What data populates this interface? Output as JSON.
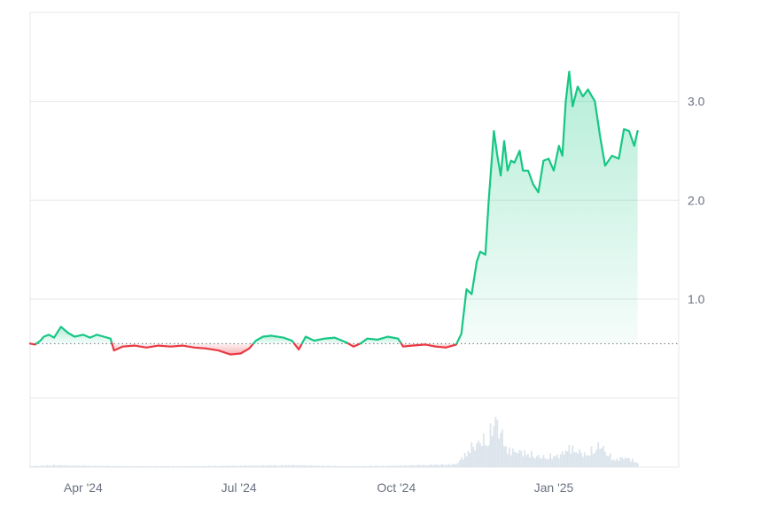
{
  "chart_data": {
    "type": "area",
    "baseline": 0.55,
    "ylim": [
      -0.7,
      3.9
    ],
    "x_range": [
      "2024-03-01",
      "2025-03-15"
    ],
    "y_ticks": [
      {
        "value": 1.0,
        "label": "1.0"
      },
      {
        "value": 2.0,
        "label": "2.0"
      },
      {
        "value": 3.0,
        "label": "3.0"
      }
    ],
    "x_ticks": [
      {
        "date": "2024-04-01",
        "label": "Apr '24"
      },
      {
        "date": "2024-07-01",
        "label": "Jul '24"
      },
      {
        "date": "2024-10-01",
        "label": "Oct '24"
      },
      {
        "date": "2025-01-01",
        "label": "Jan '25"
      }
    ],
    "series": [
      {
        "values": [
          [
            "2024-03-01",
            0.55
          ],
          [
            "2024-03-04",
            0.54
          ],
          [
            "2024-03-07",
            0.58
          ],
          [
            "2024-03-09",
            0.62
          ],
          [
            "2024-03-12",
            0.64
          ],
          [
            "2024-03-15",
            0.61
          ],
          [
            "2024-03-19",
            0.72
          ],
          [
            "2024-03-23",
            0.66
          ],
          [
            "2024-03-27",
            0.62
          ],
          [
            "2024-04-01",
            0.64
          ],
          [
            "2024-04-05",
            0.61
          ],
          [
            "2024-04-09",
            0.64
          ],
          [
            "2024-04-13",
            0.62
          ],
          [
            "2024-04-17",
            0.6
          ],
          [
            "2024-04-19",
            0.48
          ],
          [
            "2024-04-24",
            0.52
          ],
          [
            "2024-05-01",
            0.53
          ],
          [
            "2024-05-08",
            0.51
          ],
          [
            "2024-05-15",
            0.53
          ],
          [
            "2024-05-22",
            0.52
          ],
          [
            "2024-05-29",
            0.53
          ],
          [
            "2024-06-05",
            0.51
          ],
          [
            "2024-06-12",
            0.5
          ],
          [
            "2024-06-19",
            0.48
          ],
          [
            "2024-06-26",
            0.44
          ],
          [
            "2024-07-02",
            0.45
          ],
          [
            "2024-07-07",
            0.5
          ],
          [
            "2024-07-11",
            0.58
          ],
          [
            "2024-07-15",
            0.62
          ],
          [
            "2024-07-20",
            0.63
          ],
          [
            "2024-07-27",
            0.61
          ],
          [
            "2024-08-01",
            0.58
          ],
          [
            "2024-08-05",
            0.49
          ],
          [
            "2024-08-09",
            0.62
          ],
          [
            "2024-08-14",
            0.58
          ],
          [
            "2024-08-20",
            0.6
          ],
          [
            "2024-08-26",
            0.61
          ],
          [
            "2024-09-02",
            0.56
          ],
          [
            "2024-09-06",
            0.52
          ],
          [
            "2024-09-10",
            0.55
          ],
          [
            "2024-09-14",
            0.6
          ],
          [
            "2024-09-20",
            0.59
          ],
          [
            "2024-09-26",
            0.62
          ],
          [
            "2024-10-02",
            0.6
          ],
          [
            "2024-10-05",
            0.52
          ],
          [
            "2024-10-10",
            0.53
          ],
          [
            "2024-10-18",
            0.54
          ],
          [
            "2024-10-24",
            0.52
          ],
          [
            "2024-10-30",
            0.51
          ],
          [
            "2024-11-05",
            0.54
          ],
          [
            "2024-11-08",
            0.65
          ],
          [
            "2024-11-11",
            1.1
          ],
          [
            "2024-11-14",
            1.05
          ],
          [
            "2024-11-17",
            1.38
          ],
          [
            "2024-11-19",
            1.48
          ],
          [
            "2024-11-22",
            1.45
          ],
          [
            "2024-11-24",
            2.0
          ],
          [
            "2024-11-27",
            2.7
          ],
          [
            "2024-11-29",
            2.45
          ],
          [
            "2024-12-01",
            2.25
          ],
          [
            "2024-12-03",
            2.6
          ],
          [
            "2024-12-05",
            2.3
          ],
          [
            "2024-12-07",
            2.4
          ],
          [
            "2024-12-09",
            2.38
          ],
          [
            "2024-12-12",
            2.5
          ],
          [
            "2024-12-14",
            2.3
          ],
          [
            "2024-12-17",
            2.3
          ],
          [
            "2024-12-20",
            2.16
          ],
          [
            "2024-12-23",
            2.08
          ],
          [
            "2024-12-26",
            2.4
          ],
          [
            "2024-12-29",
            2.42
          ],
          [
            "2025-01-01",
            2.3
          ],
          [
            "2025-01-04",
            2.55
          ],
          [
            "2025-01-06",
            2.45
          ],
          [
            "2025-01-08",
            3.0
          ],
          [
            "2025-01-10",
            3.3
          ],
          [
            "2025-01-12",
            2.95
          ],
          [
            "2025-01-15",
            3.15
          ],
          [
            "2025-01-18",
            3.05
          ],
          [
            "2025-01-21",
            3.12
          ],
          [
            "2025-01-25",
            3.0
          ],
          [
            "2025-01-28",
            2.65
          ],
          [
            "2025-01-31",
            2.35
          ],
          [
            "2025-02-04",
            2.45
          ],
          [
            "2025-02-08",
            2.42
          ],
          [
            "2025-02-11",
            2.72
          ],
          [
            "2025-02-14",
            2.7
          ],
          [
            "2025-02-17",
            2.55
          ],
          [
            "2025-02-19",
            2.7
          ]
        ]
      }
    ],
    "volume": {
      "values": [
        [
          "2024-03-01",
          0.02
        ],
        [
          "2024-03-15",
          0.04
        ],
        [
          "2024-04-01",
          0.03
        ],
        [
          "2024-05-01",
          0.02
        ],
        [
          "2024-06-01",
          0.02
        ],
        [
          "2024-07-01",
          0.03
        ],
        [
          "2024-08-01",
          0.04
        ],
        [
          "2024-09-01",
          0.02
        ],
        [
          "2024-10-01",
          0.03
        ],
        [
          "2024-11-05",
          0.06
        ],
        [
          "2024-11-15",
          0.45
        ],
        [
          "2024-11-24",
          0.6
        ],
        [
          "2024-11-28",
          1.0
        ],
        [
          "2024-12-05",
          0.35
        ],
        [
          "2024-12-15",
          0.3
        ],
        [
          "2024-12-25",
          0.2
        ],
        [
          "2025-01-05",
          0.25
        ],
        [
          "2025-01-10",
          0.4
        ],
        [
          "2025-01-20",
          0.25
        ],
        [
          "2025-01-28",
          0.45
        ],
        [
          "2025-02-05",
          0.15
        ],
        [
          "2025-02-12",
          0.2
        ],
        [
          "2025-02-19",
          0.1
        ]
      ]
    },
    "grid": true,
    "colors": {
      "up_line": "#16c784",
      "down_line": "#ea3943",
      "up_fill": "#16c784",
      "down_fill": "#ea3943",
      "grid": "#e5e7eb",
      "volume": "#dbe4ec",
      "baseline": "#6b7280"
    }
  }
}
